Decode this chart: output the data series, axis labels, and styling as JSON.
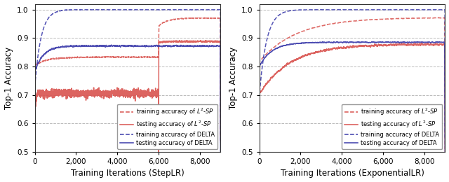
{
  "xlim": [
    0,
    9000
  ],
  "ylim": [
    0.5,
    1.02
  ],
  "yticks": [
    0.5,
    0.6,
    0.7,
    0.8,
    0.9,
    1.0
  ],
  "xticks": [
    0,
    2000,
    4000,
    6000,
    8000
  ],
  "xlabel_left": "Training Iterations (StepLR)",
  "xlabel_right": "Training Iterations (ExponentialLR)",
  "ylabel": "Top-1 Accuracy",
  "color_red": "#d9534f",
  "color_blue": "#3a3aaa",
  "legend_labels": [
    "training accuracy of $L^2$-$SP$",
    "testing accuracy of $L^2$-$SP$",
    "training accuracy of DELTA",
    "testing accuracy of DELTA"
  ],
  "n_points": 9000,
  "figsize": [
    6.4,
    2.6
  ],
  "dpi": 100
}
